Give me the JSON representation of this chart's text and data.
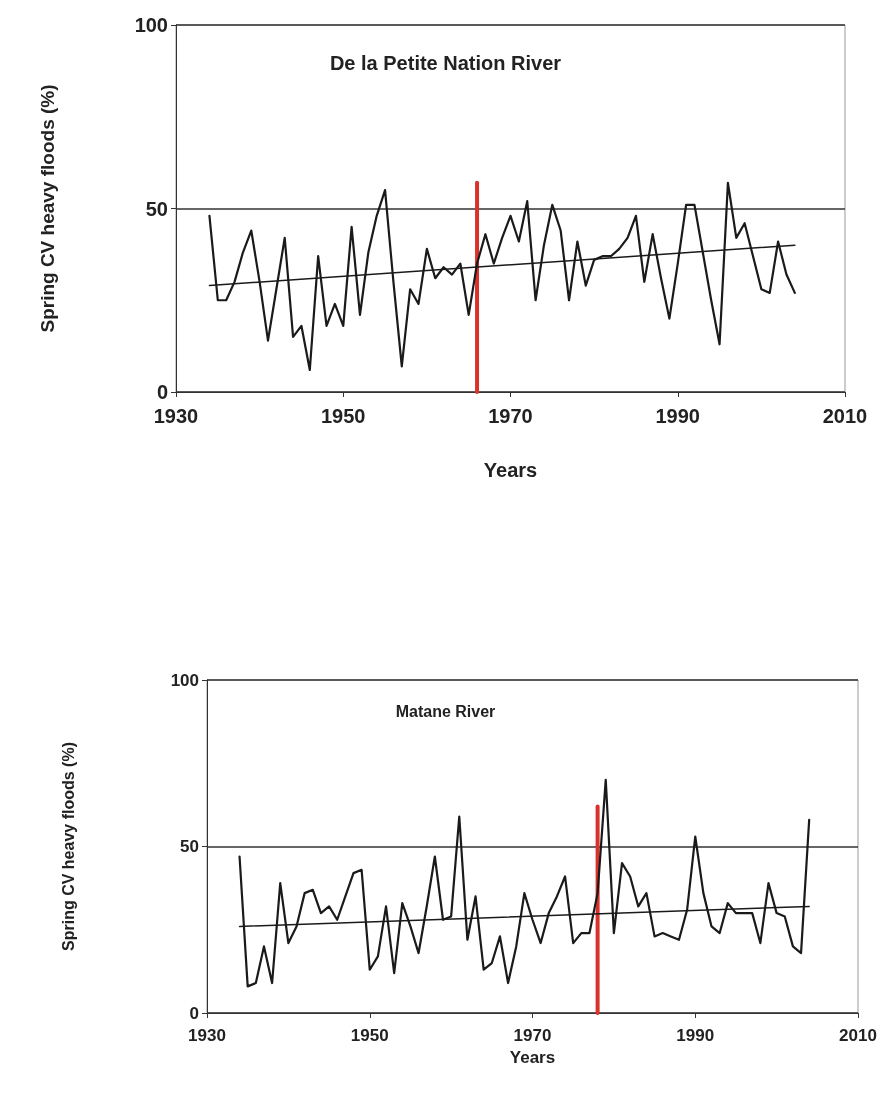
{
  "chart_data": [
    {
      "type": "line",
      "title": "De la Petite Nation River",
      "xlabel": "Years",
      "ylabel": "Spring CV heavy floods (%)",
      "x": [
        1934,
        1935,
        1936,
        1937,
        1938,
        1939,
        1940,
        1941,
        1942,
        1943,
        1944,
        1945,
        1946,
        1947,
        1948,
        1949,
        1950,
        1951,
        1952,
        1953,
        1954,
        1955,
        1956,
        1957,
        1958,
        1959,
        1960,
        1961,
        1962,
        1963,
        1964,
        1965,
        1966,
        1967,
        1968,
        1969,
        1970,
        1971,
        1972,
        1973,
        1974,
        1975,
        1976,
        1977,
        1978,
        1979,
        1980,
        1981,
        1982,
        1983,
        1984,
        1985,
        1986,
        1987,
        1988,
        1989,
        1990,
        1991,
        1992,
        1993,
        1994,
        1995,
        1996,
        1997,
        1998,
        1999,
        2000,
        2001,
        2002,
        2003,
        2004
      ],
      "series": [
        {
          "color": "#1a1a1a",
          "values": [
            48,
            25,
            25,
            30,
            38,
            44,
            30,
            14,
            28,
            42,
            15,
            18,
            6,
            37,
            18,
            24,
            18,
            45,
            21,
            38,
            48,
            55,
            30,
            7,
            28,
            24,
            39,
            31,
            34,
            32,
            35,
            21,
            35,
            43,
            35,
            42,
            48,
            41,
            52,
            25,
            40,
            51,
            44,
            25,
            41,
            29,
            36,
            37,
            37,
            39,
            42,
            48,
            30,
            43,
            31,
            20,
            35,
            51,
            51,
            38,
            25,
            13,
            57,
            42,
            46,
            37,
            28,
            27,
            41,
            32,
            27
          ]
        },
        {
          "type": "line",
          "color": "#1a1a1a",
          "x": [
            1934,
            2004
          ],
          "values": [
            29,
            40
          ]
        },
        {
          "type": "line",
          "color": "#d9322b",
          "x": [
            1966,
            1966
          ],
          "values": [
            0,
            57
          ]
        }
      ],
      "xlim": [
        1930,
        2010
      ],
      "xticks": [
        1930,
        1950,
        1970,
        1990,
        2010
      ],
      "ylim": [
        0,
        100
      ],
      "yticks": [
        0,
        50,
        100
      ],
      "grid": "y",
      "marker": "none",
      "line_style": "solid"
    },
    {
      "type": "line",
      "title": "Matane River",
      "xlabel": "Years",
      "ylabel": "Spring CV heavy floods (%)",
      "x": [
        1934,
        1935,
        1936,
        1937,
        1938,
        1939,
        1940,
        1941,
        1942,
        1943,
        1944,
        1945,
        1946,
        1947,
        1948,
        1949,
        1950,
        1951,
        1952,
        1953,
        1954,
        1955,
        1956,
        1957,
        1958,
        1959,
        1960,
        1961,
        1962,
        1963,
        1964,
        1965,
        1966,
        1967,
        1968,
        1969,
        1970,
        1971,
        1972,
        1973,
        1974,
        1975,
        1976,
        1977,
        1978,
        1979,
        1980,
        1981,
        1982,
        1983,
        1984,
        1985,
        1986,
        1987,
        1988,
        1989,
        1990,
        1991,
        1992,
        1993,
        1994,
        1995,
        1996,
        1997,
        1998,
        1999,
        2000,
        2001,
        2002,
        2003,
        2004
      ],
      "series": [
        {
          "color": "#1a1a1a",
          "values": [
            47,
            8,
            9,
            20,
            9,
            39,
            21,
            26,
            36,
            37,
            30,
            32,
            28,
            35,
            42,
            43,
            13,
            17,
            32,
            12,
            33,
            26,
            18,
            32,
            47,
            28,
            29,
            59,
            22,
            35,
            13,
            15,
            23,
            9,
            20,
            36,
            28,
            21,
            30,
            35,
            41,
            21,
            24,
            24,
            36,
            70,
            24,
            45,
            41,
            32,
            36,
            23,
            24,
            23,
            22,
            31,
            53,
            36,
            26,
            24,
            33,
            30,
            30,
            30,
            21,
            39,
            30,
            29,
            20,
            18,
            58
          ]
        },
        {
          "type": "line",
          "color": "#1a1a1a",
          "x": [
            1934,
            2004
          ],
          "values": [
            26,
            32
          ]
        },
        {
          "type": "line",
          "color": "#d9322b",
          "x": [
            1978,
            1978
          ],
          "values": [
            0,
            62
          ]
        }
      ],
      "xlim": [
        1930,
        2010
      ],
      "xticks": [
        1930,
        1950,
        1970,
        1990,
        2010
      ],
      "ylim": [
        0,
        100
      ],
      "yticks": [
        0,
        50,
        100
      ],
      "grid": "y",
      "marker": "none",
      "line_style": "solid"
    }
  ]
}
